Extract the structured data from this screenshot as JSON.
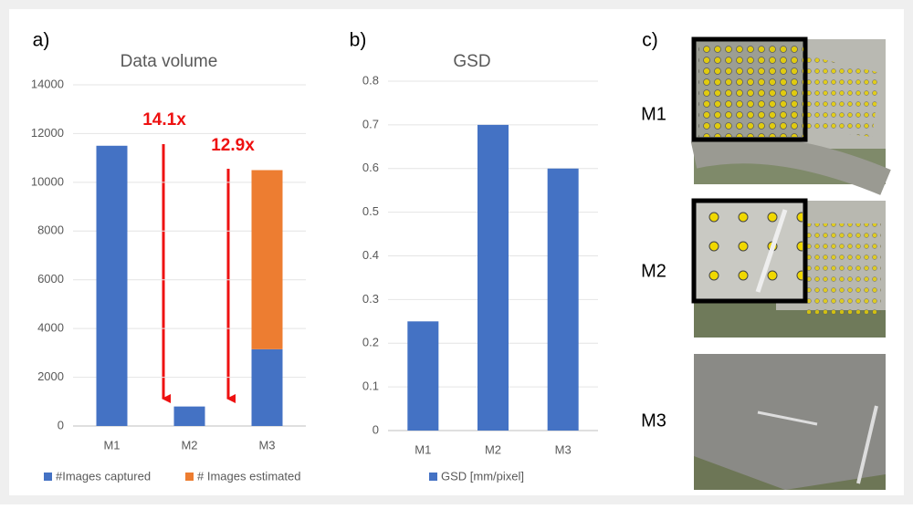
{
  "chart_data": [
    {
      "type": "bar",
      "panel_label": "a)",
      "title": "Data volume",
      "stacked": true,
      "categories": [
        "M1",
        "M2",
        "M3"
      ],
      "series": [
        {
          "name": "#Images captured",
          "color": "#4472c4",
          "values": [
            11500,
            800,
            3150
          ]
        },
        {
          "name": "# Images estimated",
          "color": "#ed7d31",
          "values": [
            null,
            null,
            7350
          ]
        }
      ],
      "ylim": [
        0,
        14000
      ],
      "yticks": [
        0,
        2000,
        4000,
        6000,
        8000,
        10000,
        12000,
        14000
      ],
      "grid": true,
      "annotations": [
        "14.1x",
        "12.9x"
      ]
    },
    {
      "type": "bar",
      "panel_label": "b)",
      "title": "GSD",
      "categories": [
        "M1",
        "M2",
        "M3"
      ],
      "series": [
        {
          "name": "GSD [mm/pixel]",
          "color": "#4472c4",
          "values": [
            0.25,
            0.7,
            0.6
          ]
        }
      ],
      "ylim": [
        0,
        0.8
      ],
      "yticks": [
        0,
        0.1,
        0.2,
        0.3,
        0.4,
        0.5,
        0.6,
        0.7,
        0.8
      ],
      "grid": true
    }
  ],
  "photos": {
    "panel_label": "c)",
    "labels": [
      "M1",
      "M2",
      "M3"
    ]
  }
}
